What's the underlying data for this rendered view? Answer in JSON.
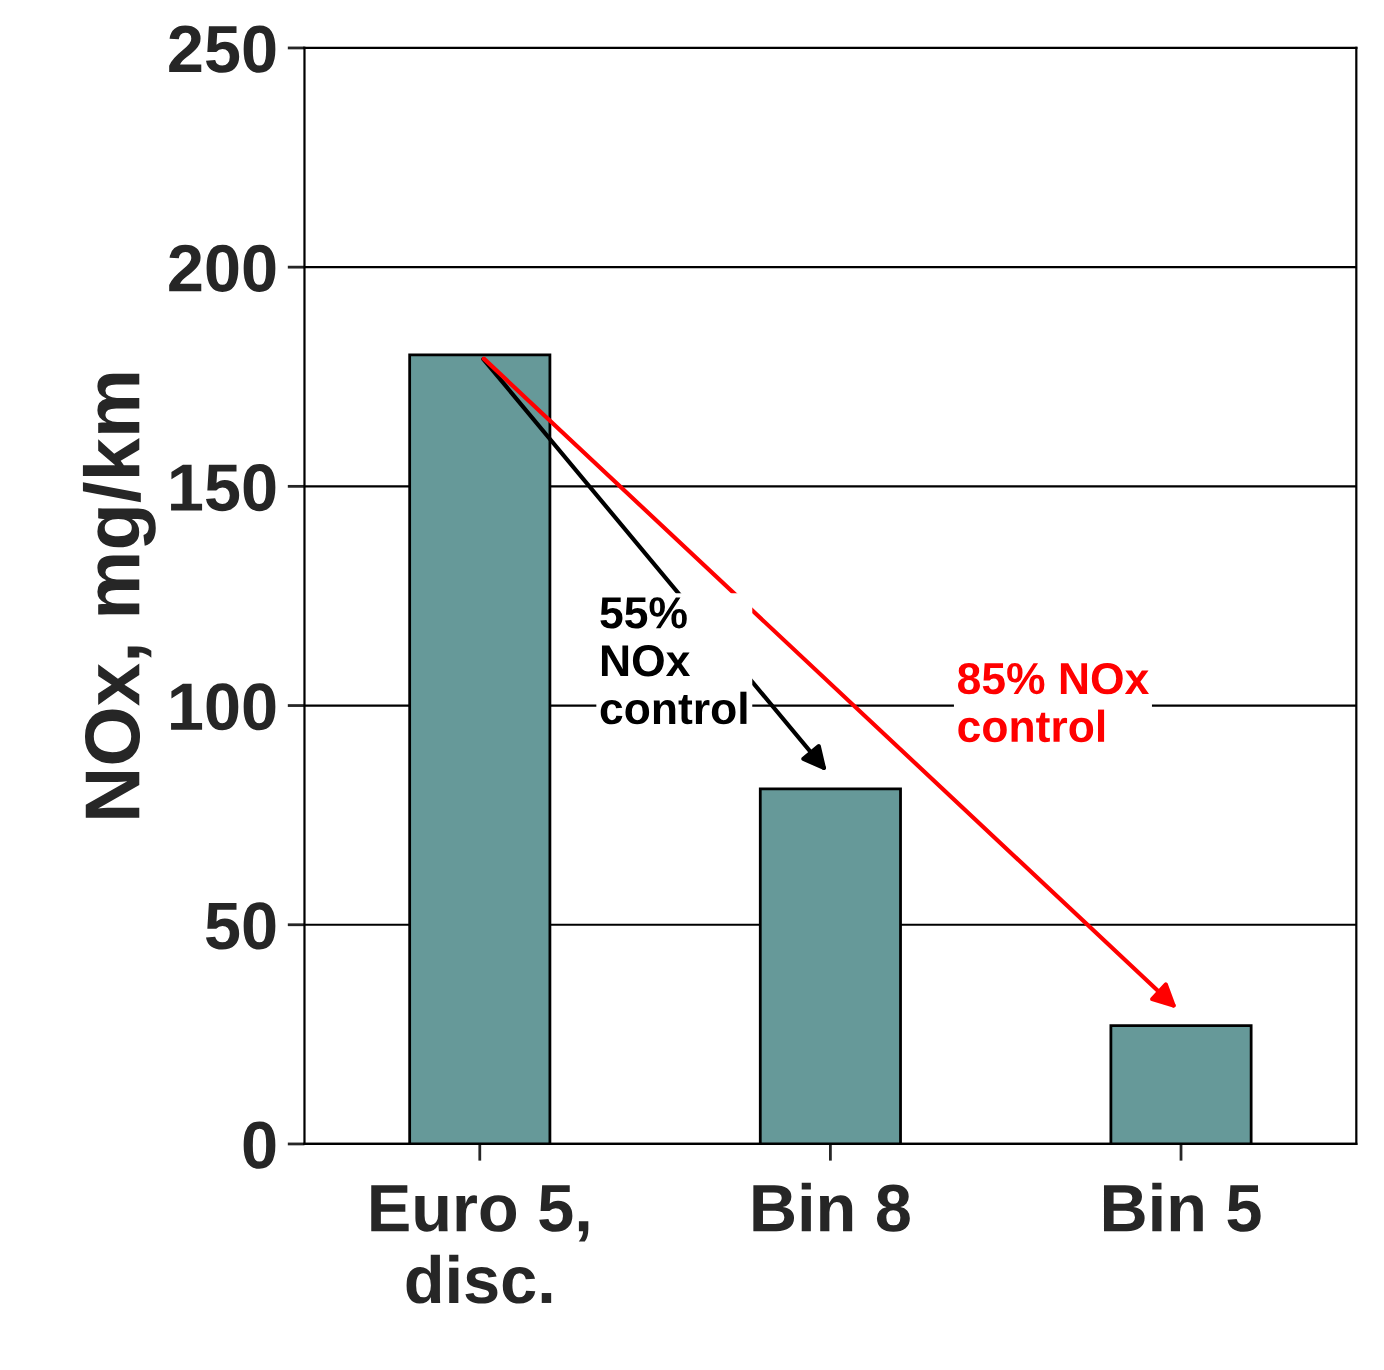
{
  "chart_data": {
    "type": "bar",
    "ylabel": "NOx, mg/km",
    "categories": [
      "Euro 5,\ndisc.",
      "Bin 8",
      "Bin 5"
    ],
    "values": [
      180,
      81,
      27
    ],
    "color": "#669999",
    "ylim": [
      0,
      250
    ],
    "yticks": [
      0,
      50,
      100,
      150,
      200,
      250
    ],
    "grid": "y",
    "annotations": [
      "55%\nNOx\ncontrol",
      "85% NOx\ncontrol"
    ]
  }
}
